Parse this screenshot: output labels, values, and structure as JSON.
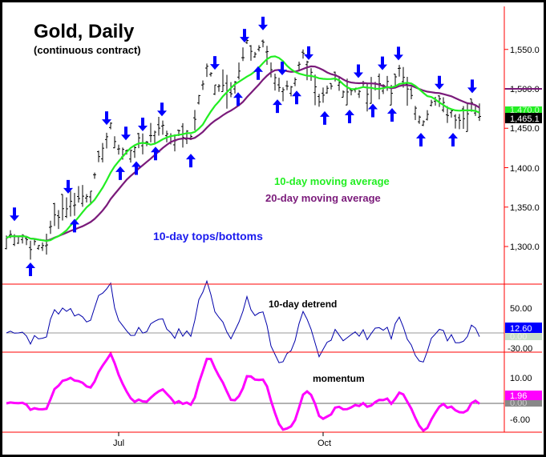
{
  "chart_data": [
    {
      "type": "bar",
      "subtype": "ohlc",
      "title": "Gold, Daily",
      "subtitle": "(continuous contract)",
      "ylim": [
        1265,
        1600
      ],
      "yticks": [
        "1,300.0",
        "1,350.0",
        "1,400.0",
        "1,450.0",
        "1,500.0",
        "1,550.0"
      ],
      "ytick_values": [
        1300,
        1350,
        1400,
        1450,
        1500,
        1550
      ],
      "xtick_labels": [
        "Jul",
        "Oct"
      ],
      "xtick_index": [
        14,
        39.5
      ],
      "closes": [
        1311,
        1318,
        1315,
        1302,
        1300,
        1305,
        1338,
        1348,
        1355,
        1360,
        1368,
        1385,
        1430,
        1450,
        1425,
        1420,
        1430,
        1432,
        1440,
        1455,
        1445,
        1440,
        1442,
        1440,
        1490,
        1525,
        1510,
        1505,
        1500,
        1520,
        1555,
        1545,
        1560,
        1525,
        1505,
        1500,
        1515,
        1540,
        1515,
        1480,
        1500,
        1520,
        1500,
        1495,
        1500,
        1500,
        1505,
        1510,
        1495,
        1525,
        1505,
        1470,
        1465,
        1480,
        1485,
        1470,
        1465,
        1468,
        1482,
        1465
      ],
      "tops_index": [
        1,
        7.7,
        12.5,
        14.9,
        17,
        19.4,
        26,
        29.7,
        32,
        34.4,
        37.7,
        43.9,
        46.9,
        48.9,
        54,
        58.1
      ],
      "bottoms_index": [
        3,
        8.5,
        14.2,
        16.2,
        18.6,
        23,
        28.9,
        31.4,
        33.8,
        36.2,
        39.7,
        42.8,
        45.7,
        48.1,
        51.7,
        55.7
      ],
      "series": [
        {
          "name": "10-day moving average",
          "color": "#22ee22"
        },
        {
          "name": "20-day moving average",
          "color": "#7a1a7a"
        }
      ],
      "annotation": "10-day tops/bottoms",
      "last_labels": {
        "ma10": "1,470.0",
        "close": "1,465.1"
      },
      "colors": {
        "bars": "#000000",
        "arrows": "#0000ff",
        "axis": "#ff0000"
      }
    },
    {
      "type": "line",
      "title": "10-day detrend",
      "yticks": [
        "50.00",
        "-30.00"
      ],
      "ytick_values": [
        50,
        -30
      ],
      "last_labels": {
        "value": "12.60",
        "zero": "0.00"
      },
      "color": "#0000aa"
    },
    {
      "type": "line",
      "title": "momentum",
      "yticks": [
        "10.00",
        "-6.00"
      ],
      "ytick_values": [
        10,
        -6
      ],
      "last_labels": {
        "value": "1.96",
        "zero": "0.00"
      },
      "color": "#ff00ff"
    }
  ]
}
